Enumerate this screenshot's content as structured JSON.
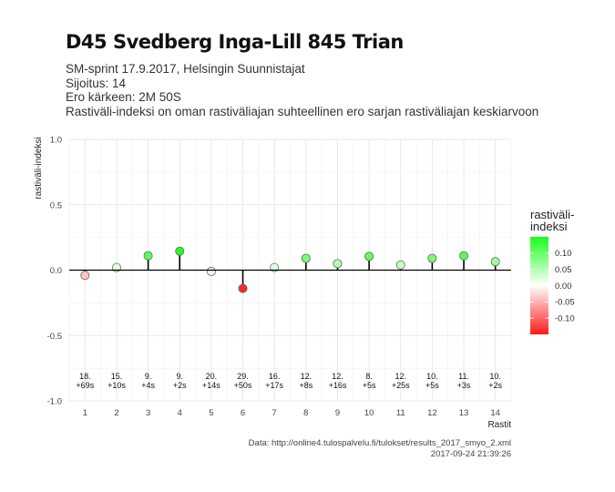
{
  "header": {
    "title": "D45 Svedberg Inga-Lill 845 Trian",
    "subtitle_lines": [
      "SM-sprint 17.9.2017, Helsingin Suunnistajat",
      "Sijoitus: 14",
      "Ero kärkeen: 2M 50S",
      "Rastiväli-indeksi on oman rastiväliajan suhteellinen ero sarjan rastiväliajan keskiarvoon"
    ]
  },
  "caption": {
    "source": "Data: http://online4.tulospalvelu.fi/tulokset/results_2017_smyo_2.xml",
    "timestamp": "2017-09-24 21:39:26"
  },
  "colors": {
    "negative": "#ff1a1a",
    "neutral": "#ffffff",
    "positive": "#1aff1a",
    "grid": "#e3e3e3",
    "axis": "#000000"
  },
  "chart_data": {
    "type": "lollipop",
    "title": "D45 Svedberg Inga-Lill 845 Trian",
    "xlabel": "Rastit",
    "ylabel": "rastiväli-indeksi",
    "ylim": [
      -1.0,
      1.0
    ],
    "yticks": [
      -1.0,
      -0.5,
      0.0,
      0.5,
      1.0
    ],
    "ytick_labels": [
      "-1.0",
      "-0.5",
      "0.0",
      "0.5",
      "1.0"
    ],
    "x": [
      1,
      2,
      3,
      4,
      5,
      6,
      7,
      8,
      9,
      10,
      11,
      12,
      13,
      14
    ],
    "values": [
      -0.04,
      0.02,
      0.11,
      0.145,
      -0.01,
      -0.14,
      0.02,
      0.09,
      0.05,
      0.105,
      0.04,
      0.09,
      0.11,
      0.065
    ],
    "rank_labels": [
      "18.",
      "15.",
      "9.",
      "9.",
      "20.",
      "29.",
      "16.",
      "12.",
      "12.",
      "8.",
      "12.",
      "10.",
      "11.",
      "10."
    ],
    "diff_labels": [
      "+69s",
      "+10s",
      "+4s",
      "+2s",
      "+14s",
      "+50s",
      "+17s",
      "+8s",
      "+16s",
      "+5s",
      "+25s",
      "+5s",
      "+3s",
      "+2s"
    ],
    "grid": true,
    "legend": {
      "title_lines": [
        "rastiväli-",
        "indeksi"
      ],
      "position": "right",
      "tick_values": [
        0.1,
        0.05,
        0.0,
        -0.05,
        -0.1
      ],
      "tick_labels": [
        "0.10",
        "0.05",
        "0.00",
        "-0.05",
        "-0.10"
      ],
      "range": [
        -0.15,
        0.15
      ]
    }
  }
}
